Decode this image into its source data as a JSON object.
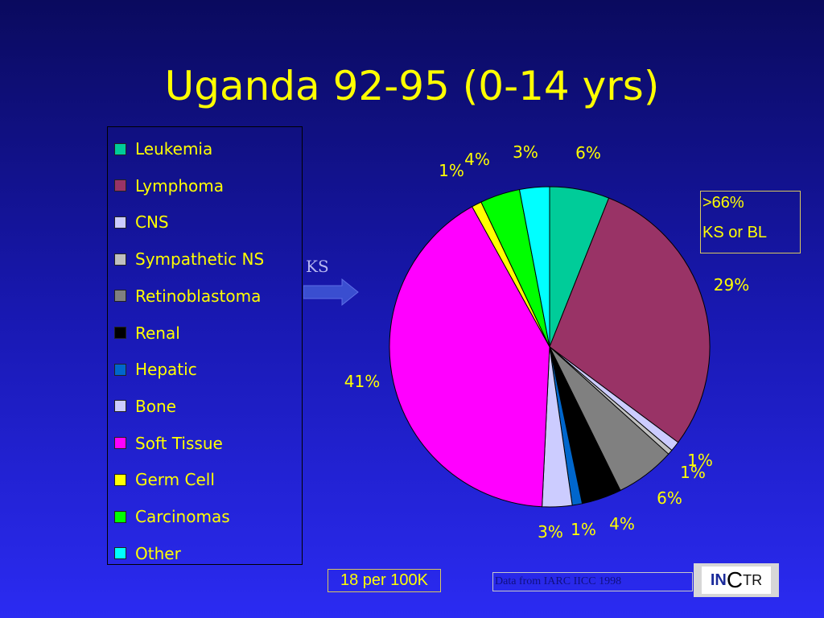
{
  "title": "Uganda 92-95 (0-14 yrs)",
  "chart_data": {
    "type": "pie",
    "title": "Uganda 92-95 (0-14 yrs)",
    "legend_position": "left",
    "slices": [
      {
        "name": "Leukemia",
        "value": 6,
        "label": "6%",
        "color": "#00cc99"
      },
      {
        "name": "Lymphoma",
        "value": 29,
        "label": "29%",
        "color": "#993366"
      },
      {
        "name": "CNS",
        "value": 1,
        "label": "1%",
        "color": "#ccccff"
      },
      {
        "name": "Sympathetic NS",
        "value": 0.5,
        "label": "1%",
        "color": "#c0c0c0"
      },
      {
        "name": "Retinoblastoma",
        "value": 6,
        "label": "6%",
        "color": "#808080"
      },
      {
        "name": "Renal",
        "value": 4,
        "label": "4%",
        "color": "#000000"
      },
      {
        "name": "Hepatic",
        "value": 1,
        "label": "1%",
        "color": "#0066cc"
      },
      {
        "name": "Bone",
        "value": 3,
        "label": "3%",
        "color": "#ccccff"
      },
      {
        "name": "Soft Tissue",
        "value": 41,
        "label": "41%",
        "color": "#ff00ff"
      },
      {
        "name": "Germ Cell",
        "value": 1,
        "label": "1%",
        "color": "#ffff00"
      },
      {
        "name": "Carcinomas",
        "value": 4,
        "label": "4%",
        "color": "#00ff00"
      },
      {
        "name": "Other",
        "value": 3,
        "label": "3%",
        "color": "#00ffff"
      }
    ]
  },
  "ks_label": "KS",
  "note": {
    "line1": ">66%",
    "line2": "KS or BL"
  },
  "rate": "18 per 100K",
  "source": "Data from IARC IICC 1998",
  "logo": {
    "part1": "IN",
    "part2": "C",
    "part3": "TR"
  }
}
